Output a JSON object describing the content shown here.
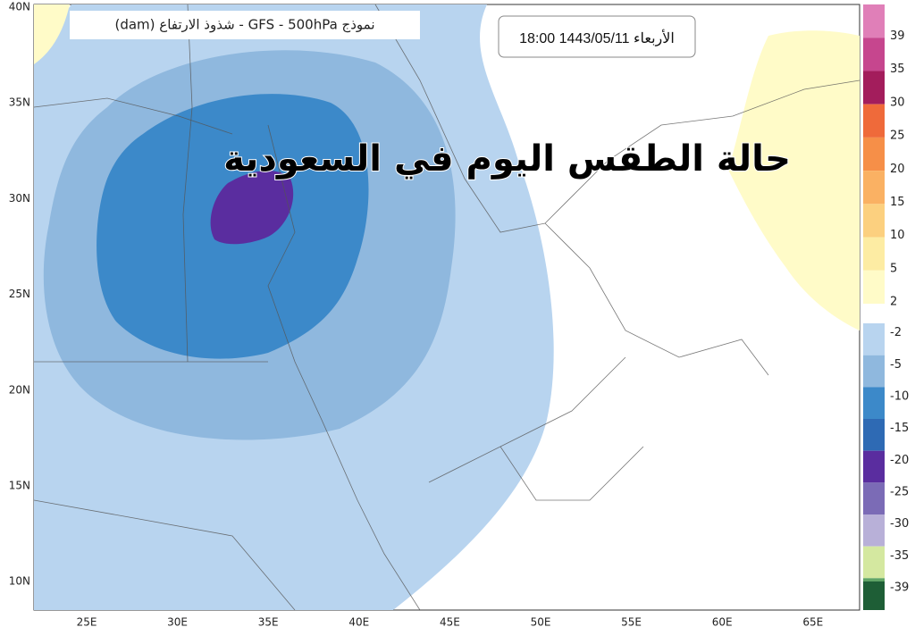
{
  "header": {
    "title": "نموذج GFS - 500hPa - شذوذ الارتفاع (dam)",
    "timestamp": "الأربعاء 1443/05/11 18:00",
    "headline": "حالة الطقس اليوم في السعودية"
  },
  "map": {
    "latitude_labels": [
      "40N",
      "35N",
      "30N",
      "25N",
      "20N",
      "15N",
      "10N"
    ],
    "longitude_labels": [
      "25E",
      "30E",
      "35E",
      "40E",
      "45E",
      "50E",
      "55E",
      "60E",
      "65E"
    ]
  },
  "legend": {
    "items": [
      {
        "label": "39",
        "color": "#e07fb8"
      },
      {
        "label": "35",
        "color": "#c6468e"
      },
      {
        "label": "30",
        "color": "#a31d5c"
      },
      {
        "label": "25",
        "color": "#ef6a3a"
      },
      {
        "label": "20",
        "color": "#f68f48"
      },
      {
        "label": "15",
        "color": "#fab163"
      },
      {
        "label": "10",
        "color": "#fcd07f"
      },
      {
        "label": "5",
        "color": "#fdeca3"
      },
      {
        "label": "2",
        "color": "#fffbc8"
      },
      {
        "label": "-2",
        "color": "#b8d4ef"
      },
      {
        "label": "-5",
        "color": "#8fb8de"
      },
      {
        "label": "-10",
        "color": "#3c89c9"
      },
      {
        "label": "-15",
        "color": "#2e6ab4"
      },
      {
        "label": "-20",
        "color": "#5a2d9f"
      },
      {
        "label": "-25",
        "color": "#7b6bb6"
      },
      {
        "label": "-30",
        "color": "#b8b0d8"
      },
      {
        "label": "-35",
        "color": "#d4e8a0"
      },
      {
        "label": "-39",
        "color": "#5fa466"
      }
    ]
  }
}
